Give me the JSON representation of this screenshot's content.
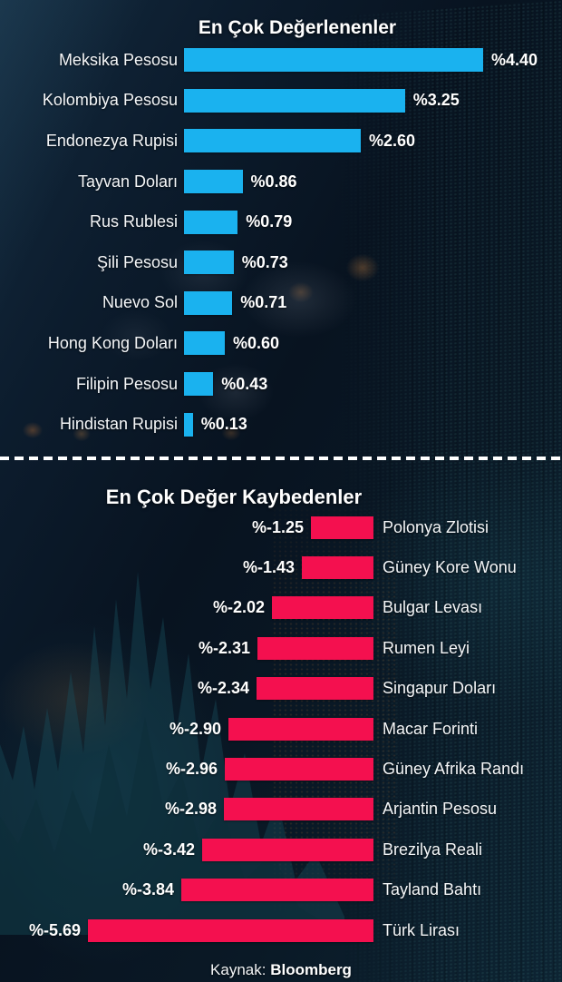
{
  "footer": {
    "source_label": "Kaynak:",
    "source_name": "Bloomberg"
  },
  "chart_data": [
    {
      "type": "bar",
      "title": "En Çok Değerlenenler",
      "orientation": "horizontal",
      "bar_anchor": "left",
      "label_side": "left",
      "bar_color": "#1ab2ef",
      "xlim": [
        0,
        4.4
      ],
      "categories": [
        "Meksika Pesosu",
        "Kolombiya Pesosu",
        "Endonezya Rupisi",
        "Tayvan Doları",
        "Rus Rublesi",
        "Şili Pesosu",
        "Nuevo Sol",
        "Hong Kong Doları",
        "Filipin Pesosu",
        "Hindistan Rupisi"
      ],
      "values": [
        4.4,
        3.25,
        2.6,
        0.86,
        0.79,
        0.73,
        0.71,
        0.6,
        0.43,
        0.13
      ],
      "value_labels": [
        "%4.40",
        "%3.25",
        "%2.60",
        "%0.86",
        "%0.79",
        "%0.73",
        "%0.71",
        "%0.60",
        "%0.43",
        "%0.13"
      ]
    },
    {
      "type": "bar",
      "title": "En Çok Değer Kaybedenler",
      "orientation": "horizontal",
      "bar_anchor": "right",
      "label_side": "right",
      "bar_color": "#f4104f",
      "xlim": [
        -5.69,
        0
      ],
      "categories": [
        "Polonya Zlotisi",
        "Güney Kore Wonu",
        "Bulgar Levası",
        "Rumen Leyi",
        "Singapur Doları",
        "Macar Forinti",
        "Güney Afrika Randı",
        "Arjantin Pesosu",
        "Brezilya Reali",
        "Tayland Bahtı",
        "Türk Lirası"
      ],
      "values": [
        -1.25,
        -1.43,
        -2.02,
        -2.31,
        -2.34,
        -2.9,
        -2.96,
        -2.98,
        -3.42,
        -3.84,
        -5.69
      ],
      "value_labels": [
        "%-1.25",
        "%-1.43",
        "%-2.02",
        "%-2.31",
        "%-2.34",
        "%-2.90",
        "%-2.96",
        "%-2.98",
        "%-3.42",
        "%-3.84",
        "%-5.69"
      ]
    }
  ]
}
